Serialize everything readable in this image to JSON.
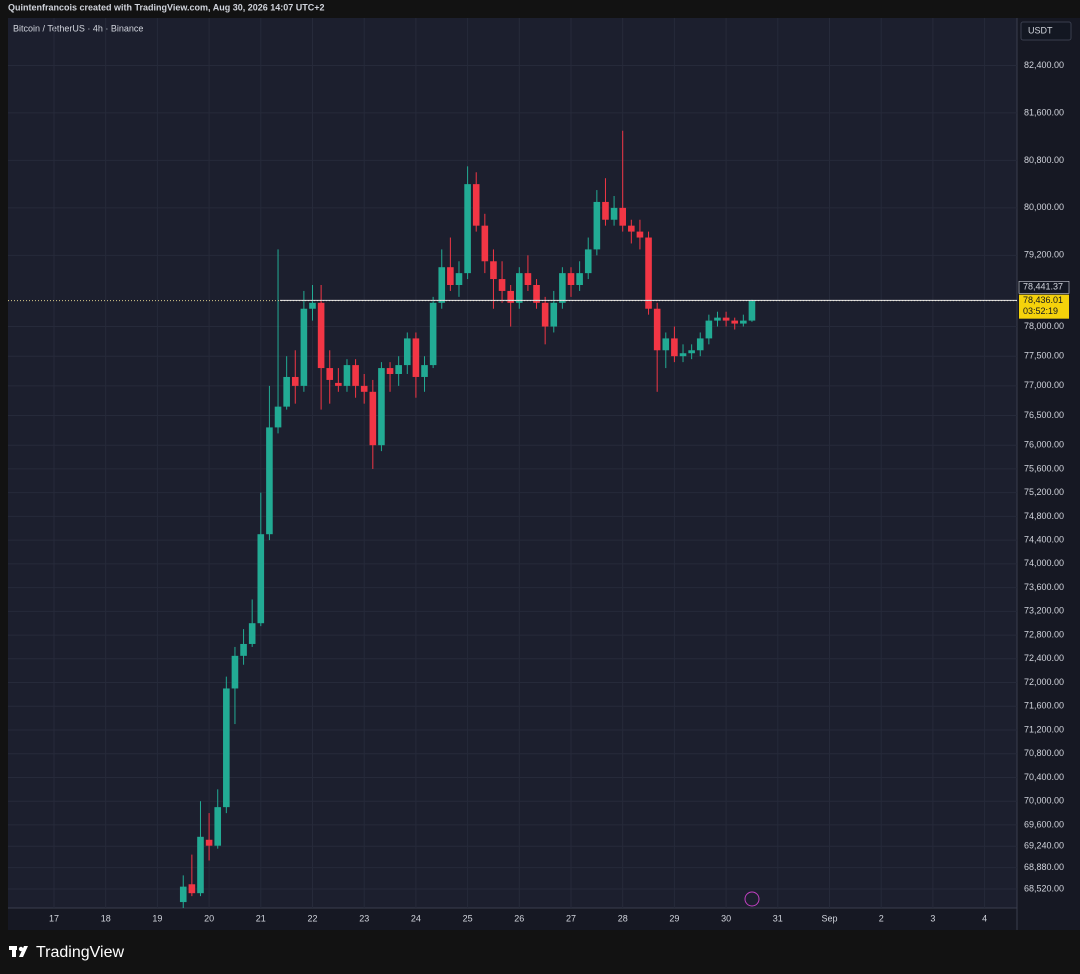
{
  "attribution": "Quintenfrancois created with TradingView.com, Aug 30, 2026 14:07 UTC+2",
  "brand": "TradingView",
  "chart_data": {
    "type": "candlestick",
    "title": "Bitcoin / TetherUS · 4h · Binance",
    "currency": "USDT",
    "up_color": "#22ab94",
    "down_color": "#f23645",
    "grid": true,
    "x_labels": [
      "17",
      "18",
      "19",
      "20",
      "21",
      "22",
      "23",
      "24",
      "25",
      "26",
      "27",
      "28",
      "29",
      "30",
      "31",
      "Sep",
      "2",
      "3",
      "4"
    ],
    "open": [
      68300,
      68600,
      68450,
      69350,
      69250,
      69900,
      71900,
      72450,
      72650,
      73000,
      74500,
      76300,
      76650,
      77150,
      77000,
      78300,
      78400,
      77300,
      77050,
      77000,
      77350,
      77000,
      76900,
      76000,
      77300,
      77200,
      77350,
      77800,
      77150,
      77350,
      78400,
      79000,
      78700,
      78900,
      80400,
      79700,
      79100,
      78800,
      78600,
      78400,
      78900,
      78700,
      78400,
      78000,
      78400,
      78900,
      78700,
      78900,
      79300,
      80100,
      79800,
      80000,
      79700,
      79600,
      79500,
      78300,
      77600,
      77800,
      77500,
      77550,
      77600,
      77800,
      78100,
      78150,
      78100,
      78050,
      78100
    ],
    "high": [
      68750,
      69100,
      70000,
      69800,
      70200,
      72100,
      72600,
      72900,
      73400,
      75200,
      77000,
      79300,
      77500,
      77600,
      78600,
      78700,
      78700,
      77600,
      77300,
      77450,
      77450,
      77200,
      77100,
      77400,
      77400,
      77500,
      77900,
      77900,
      77500,
      78500,
      79300,
      79500,
      79100,
      80700,
      80600,
      79900,
      79300,
      79100,
      78700,
      79000,
      79200,
      78800,
      78500,
      78600,
      79000,
      79000,
      79100,
      79500,
      80300,
      80500,
      80200,
      81300,
      79800,
      79800,
      79600,
      78400,
      77900,
      78000,
      77700,
      77700,
      77900,
      78200,
      78250,
      78250,
      78150,
      78200,
      78450
    ],
    "low": [
      68200,
      68400,
      68400,
      69000,
      69200,
      69800,
      71300,
      72300,
      72600,
      72950,
      74400,
      76200,
      76600,
      76700,
      76900,
      78100,
      76600,
      76700,
      76900,
      76900,
      76800,
      76700,
      75600,
      75900,
      76900,
      77000,
      77200,
      76800,
      76900,
      77300,
      78300,
      78600,
      78500,
      78800,
      79600,
      78900,
      78300,
      78400,
      78000,
      78300,
      78600,
      78300,
      77700,
      77900,
      78300,
      78500,
      78600,
      78800,
      79200,
      79700,
      79700,
      79600,
      79400,
      79300,
      78200,
      76900,
      77300,
      77400,
      77400,
      77450,
      77500,
      77700,
      78000,
      78000,
      77950,
      78000,
      78080
    ],
    "close": [
      68560,
      68450,
      69400,
      69250,
      69900,
      71900,
      72450,
      72650,
      73000,
      74500,
      76300,
      76650,
      77150,
      77000,
      78300,
      78400,
      77300,
      77100,
      77000,
      77350,
      77000,
      76900,
      76000,
      77300,
      77200,
      77350,
      77800,
      77150,
      77350,
      78400,
      79000,
      78700,
      78900,
      80400,
      79700,
      79100,
      78800,
      78600,
      78400,
      78900,
      78700,
      78400,
      78000,
      78400,
      78900,
      78700,
      78900,
      79300,
      80100,
      79800,
      80000,
      79700,
      79600,
      79500,
      78300,
      77600,
      77800,
      77500,
      77550,
      77600,
      77800,
      78100,
      78150,
      78100,
      78050,
      78100,
      78436.01
    ],
    "ylim": [
      68200,
      83200
    ],
    "yticks": [
      {
        "value": 68520,
        "label": "68,520.00"
      },
      {
        "value": 68880,
        "label": "68,880.00"
      },
      {
        "value": 69240,
        "label": "69,240.00"
      },
      {
        "value": 69600,
        "label": "69,600.00"
      },
      {
        "value": 70000,
        "label": "70,000.00"
      },
      {
        "value": 70400,
        "label": "70,400.00"
      },
      {
        "value": 70800,
        "label": "70,800.00"
      },
      {
        "value": 71200,
        "label": "71,200.00"
      },
      {
        "value": 71600,
        "label": "71,600.00"
      },
      {
        "value": 72000,
        "label": "72,000.00"
      },
      {
        "value": 72400,
        "label": "72,400.00"
      },
      {
        "value": 72800,
        "label": "72,800.00"
      },
      {
        "value": 73200,
        "label": "73,200.00"
      },
      {
        "value": 73600,
        "label": "73,600.00"
      },
      {
        "value": 74000,
        "label": "74,000.00"
      },
      {
        "value": 74400,
        "label": "74,400.00"
      },
      {
        "value": 74800,
        "label": "74,800.00"
      },
      {
        "value": 75200,
        "label": "75,200.00"
      },
      {
        "value": 75600,
        "label": "75,600.00"
      },
      {
        "value": 76000,
        "label": "76,000.00"
      },
      {
        "value": 76500,
        "label": "76,500.00"
      },
      {
        "value": 77000,
        "label": "77,000.00"
      },
      {
        "value": 77500,
        "label": "77,500.00"
      },
      {
        "value": 78000,
        "label": "78,000.00"
      },
      {
        "value": 79200,
        "label": "79,200.00"
      },
      {
        "value": 80000,
        "label": "80,000.00"
      },
      {
        "value": 80800,
        "label": "80,800.00"
      },
      {
        "value": 81600,
        "label": "81,600.00"
      },
      {
        "value": 82400,
        "label": "82,400.00"
      }
    ],
    "reference_price": {
      "value": 78441.37,
      "label": "78,441.37"
    },
    "current_price": {
      "value": 78436.01,
      "label": "78,436.01"
    },
    "countdown": "03:52:19"
  }
}
